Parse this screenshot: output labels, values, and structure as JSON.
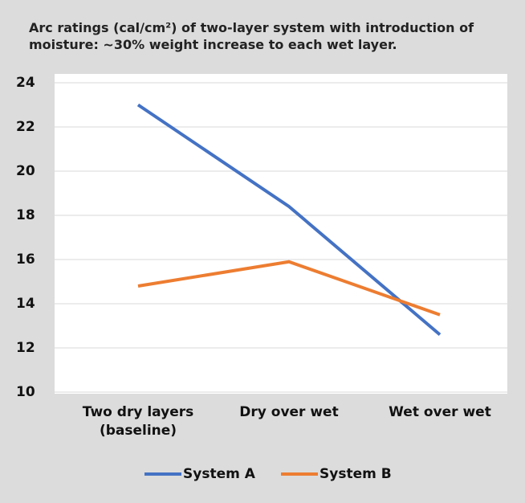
{
  "chart_data": {
    "type": "line",
    "title": "Arc ratings (cal/cm²) of two-layer system with introduction of moisture: ~30% weight increase to each wet layer.",
    "categories": [
      "Two dry layers (baseline)",
      "Dry over wet",
      "Wet over wet"
    ],
    "series": [
      {
        "name": "System A",
        "color": "#4472c4",
        "values": [
          23,
          18.4,
          12.6
        ]
      },
      {
        "name": "System B",
        "color": "#ed7d31",
        "values": [
          14.8,
          15.9,
          13.5
        ]
      }
    ],
    "ylim": [
      10,
      24
    ],
    "yticks": [
      10,
      12,
      14,
      16,
      18,
      20,
      22,
      24
    ],
    "grid": true,
    "legend": "bottom"
  }
}
